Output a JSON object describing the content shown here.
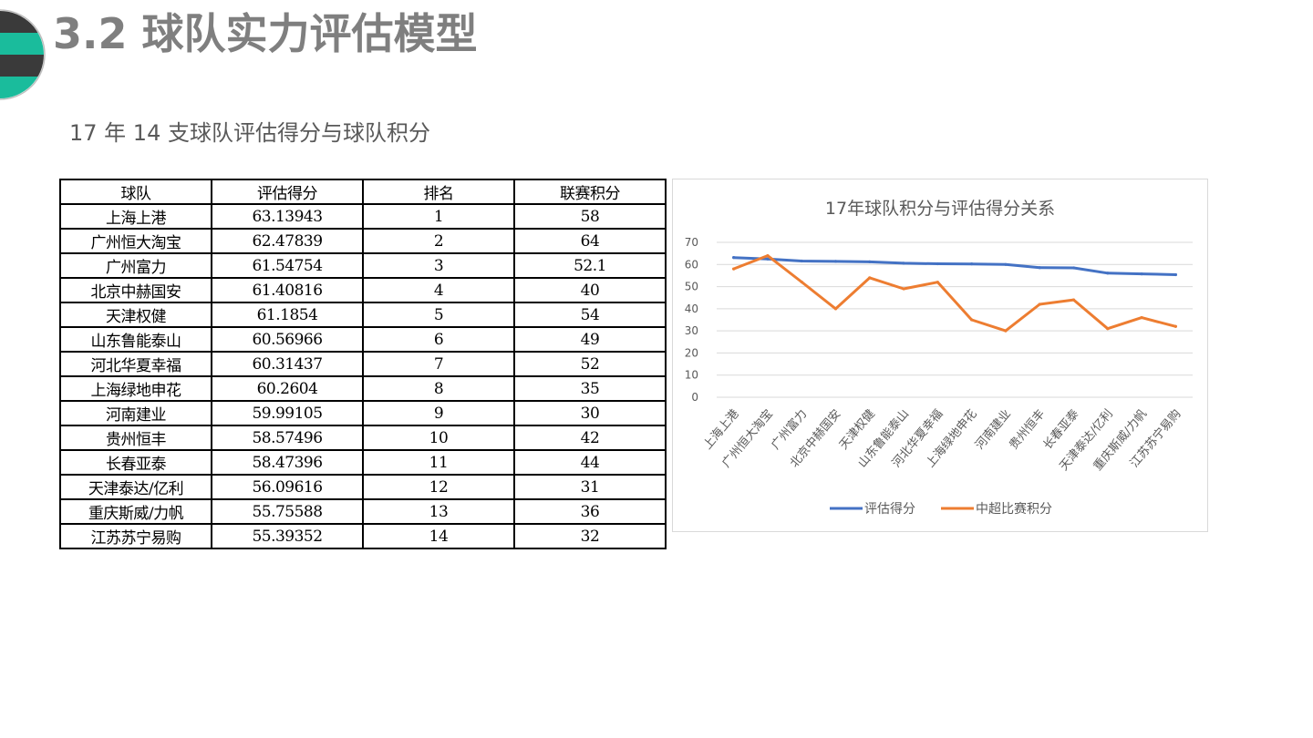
{
  "slide": {
    "title": "3.2 球队实力评估模型",
    "subtitle": "17 年 14 支球队评估得分与球队积分"
  },
  "table": {
    "headers": [
      "球队",
      "评估得分",
      "排名",
      "联赛积分"
    ],
    "rows": [
      [
        "上海上港",
        "63.13943",
        "1",
        "58"
      ],
      [
        "广州恒大淘宝",
        "62.47839",
        "2",
        "64"
      ],
      [
        "广州富力",
        "61.54754",
        "3",
        "52.1"
      ],
      [
        "北京中赫国安",
        "61.40816",
        "4",
        "40"
      ],
      [
        "天津权健",
        "61.1854",
        "5",
        "54"
      ],
      [
        "山东鲁能泰山",
        "60.56966",
        "6",
        "49"
      ],
      [
        "河北华夏幸福",
        "60.31437",
        "7",
        "52"
      ],
      [
        "上海绿地申花",
        "60.2604",
        "8",
        "35"
      ],
      [
        "河南建业",
        "59.99105",
        "9",
        "30"
      ],
      [
        "贵州恒丰",
        "58.57496",
        "10",
        "42"
      ],
      [
        "长春亚泰",
        "58.47396",
        "11",
        "44"
      ],
      [
        "天津泰达/亿利",
        "56.09616",
        "12",
        "31"
      ],
      [
        "重庆斯威/力帆",
        "55.75588",
        "13",
        "36"
      ],
      [
        "江苏苏宁易购",
        "55.39352",
        "14",
        "32"
      ]
    ]
  },
  "chart_data": {
    "type": "line",
    "title": "17年球队积分与评估得分关系",
    "categories": [
      "上海上港",
      "广州恒大淘宝",
      "广州富力",
      "北京中赫国安",
      "天津权健",
      "山东鲁能泰山",
      "河北华夏幸福",
      "上海绿地申花",
      "河南建业",
      "贵州恒丰",
      "长春亚泰",
      "天津泰达/亿利",
      "重庆斯威/力帆",
      "江苏苏宁易购"
    ],
    "series": [
      {
        "name": "评估得分",
        "color": "#4472c4",
        "values": [
          63.13943,
          62.47839,
          61.54754,
          61.40816,
          61.1854,
          60.56966,
          60.31437,
          60.2604,
          59.99105,
          58.57496,
          58.47396,
          56.09616,
          55.75588,
          55.39352
        ]
      },
      {
        "name": "中超比赛积分",
        "color": "#ed7d31",
        "values": [
          58,
          64,
          52.1,
          40,
          54,
          49,
          52,
          35,
          30,
          42,
          44,
          31,
          36,
          32
        ]
      }
    ],
    "ylim": [
      0,
      70
    ],
    "yticks": [
      0,
      10,
      20,
      30,
      40,
      50,
      60,
      70
    ],
    "grid": true,
    "legend": "bottom"
  },
  "colors": {
    "logo_teal": "#1abc9c",
    "logo_dark": "#3a3a3a",
    "title_gray": "#7f7f7f"
  }
}
